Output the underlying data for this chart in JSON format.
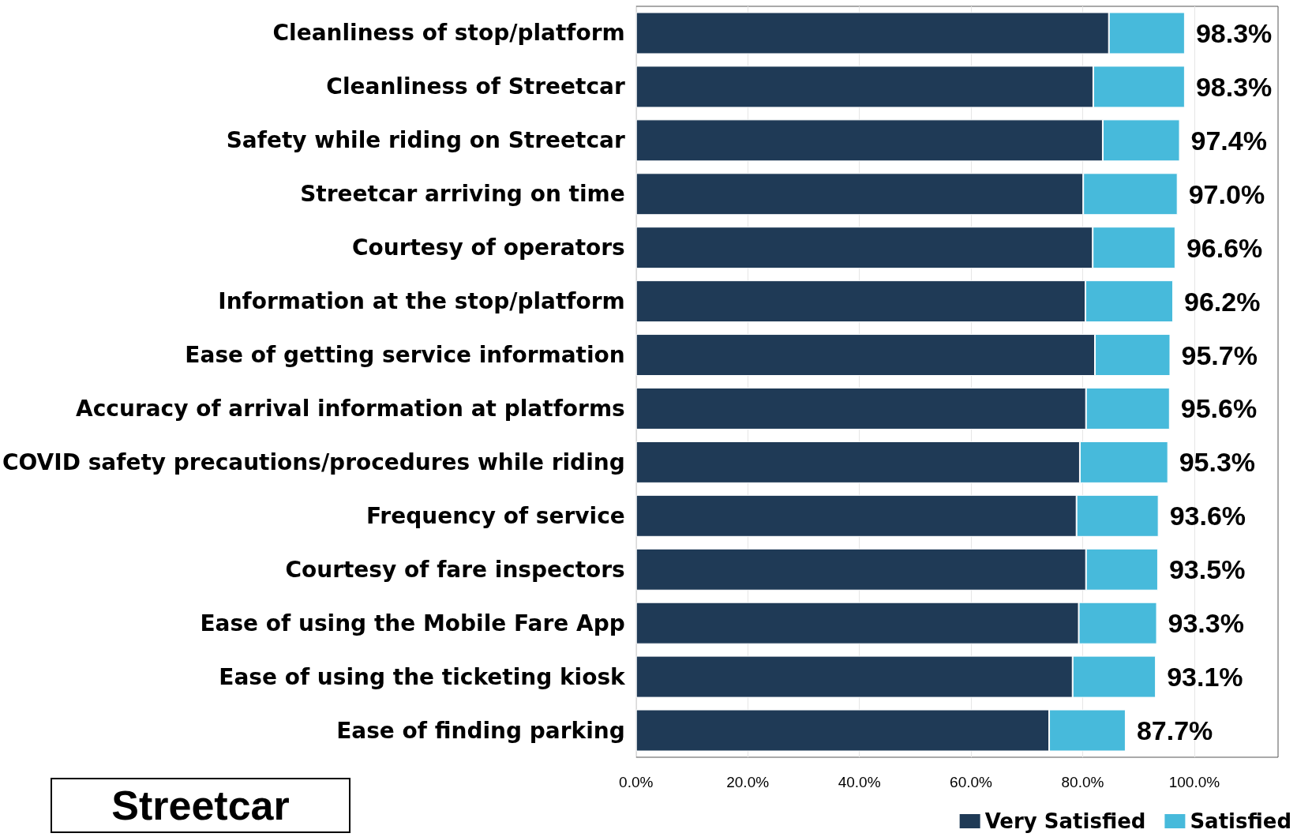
{
  "chart_data": {
    "type": "bar",
    "orientation": "horizontal",
    "stacked": true,
    "categories": [
      "Cleanliness of stop/platform",
      "Cleanliness of Streetcar",
      "Safety while riding on Streetcar",
      "Streetcar arriving on time",
      "Courtesy of operators",
      "Information at the stop/platform",
      "Ease of getting service information",
      "Accuracy of arrival information at platforms",
      "COVID safety precautions/procedures while riding",
      "Frequency of service",
      "Courtesy of fare inspectors",
      "Ease of using the Mobile Fare App",
      "Ease of using the ticketing kiosk",
      "Ease of finding parking"
    ],
    "series": [
      {
        "name": "Very Satisfied",
        "color": "#1f3a56",
        "values": [
          84.7,
          81.9,
          83.6,
          80.1,
          81.8,
          80.5,
          82.2,
          80.6,
          79.5,
          78.9,
          80.6,
          79.3,
          78.2,
          74.0
        ]
      },
      {
        "name": "Satisfied",
        "color": "#47badb",
        "values": [
          13.6,
          16.4,
          13.8,
          16.9,
          14.8,
          15.7,
          13.5,
          15.0,
          15.8,
          14.7,
          12.9,
          14.0,
          14.9,
          13.7
        ]
      }
    ],
    "totals": [
      "98.3%",
      "98.3%",
      "97.4%",
      "97.0%",
      "96.6%",
      "96.2%",
      "95.7%",
      "95.6%",
      "95.3%",
      "93.6%",
      "93.5%",
      "93.3%",
      "93.1%",
      "87.7%"
    ],
    "xlim": [
      0,
      115
    ],
    "xticks": [
      {
        "value": 0,
        "label": "0.0%"
      },
      {
        "value": 20,
        "label": "20.0%"
      },
      {
        "value": 40,
        "label": "40.0%"
      },
      {
        "value": 60,
        "label": "60.0%"
      },
      {
        "value": 80,
        "label": "80.0%"
      },
      {
        "value": 100,
        "label": "100.0%"
      }
    ],
    "grid": "x",
    "legend": "bottom right",
    "annotations": [
      "Streetcar"
    ]
  }
}
